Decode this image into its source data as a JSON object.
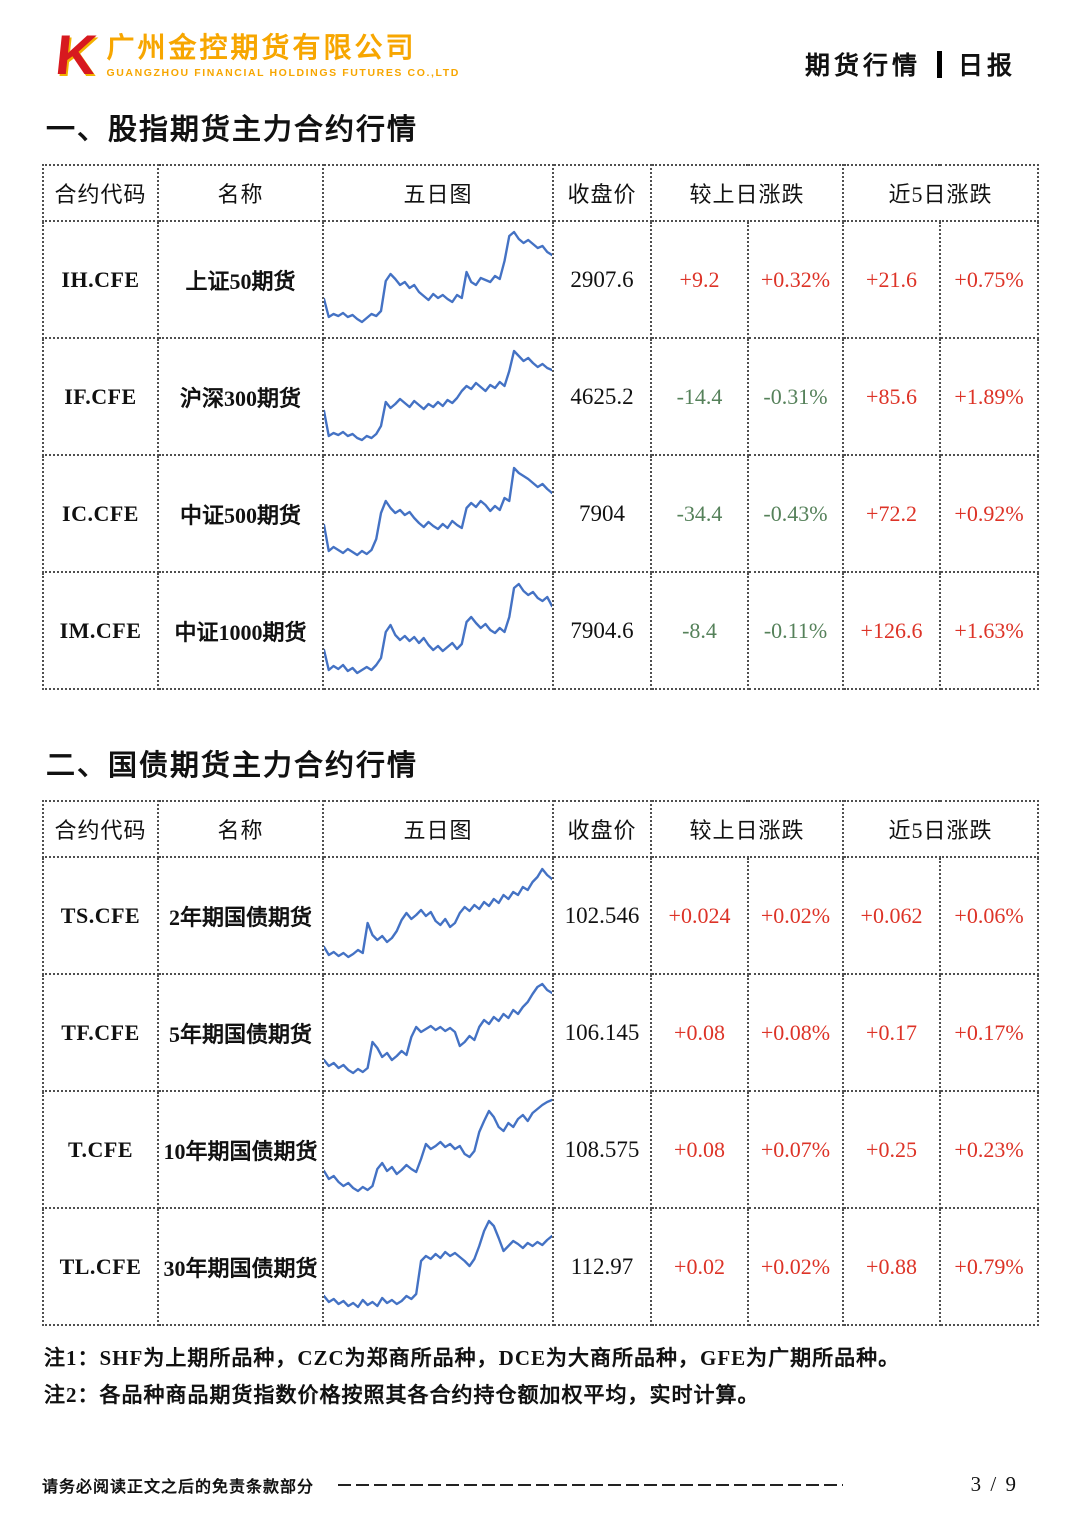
{
  "brand": {
    "logo_letter": "K",
    "company_cn": "广州金控期货有限公司",
    "company_en": "GUANGZHOU FINANCIAL HOLDINGS FUTURES CO.,LTD",
    "logo_red": "#d7191f",
    "logo_orange": "#f7a600"
  },
  "header": {
    "title_left": "期货行情",
    "title_right": "日报"
  },
  "colors": {
    "up": "#dd3327",
    "down": "#55815a",
    "spark_line": "#4472c4"
  },
  "table_columns": {
    "code": "合约代码",
    "name": "名称",
    "chart": "五日图",
    "close": "收盘价",
    "day_change": "较上日涨跌",
    "five_day_change": "近5日涨跌"
  },
  "sections": [
    {
      "heading": "一、股指期货主力合约行情"
    },
    {
      "heading": "二、国债期货主力合约行情"
    }
  ],
  "tables": [
    {
      "rows": [
        {
          "code": "IH.CFE",
          "name": "上证50期货",
          "close": "2907.6",
          "chg": "+9.2",
          "chg_pct": "+0.32%",
          "chg5": "+21.6",
          "chg5_pct": "+0.75%",
          "spark": [
            30,
            12,
            15,
            13,
            16,
            12,
            14,
            10,
            7,
            11,
            15,
            13,
            18,
            48,
            55,
            50,
            44,
            47,
            41,
            44,
            37,
            33,
            29,
            35,
            31,
            34,
            30,
            27,
            34,
            31,
            57,
            47,
            44,
            51,
            49,
            47,
            53,
            50,
            68,
            93,
            97,
            90,
            86,
            89,
            85,
            81,
            83,
            77,
            74
          ]
        },
        {
          "code": "IF.CFE",
          "name": "沪深300期货",
          "close": "4625.2",
          "chg": "-14.4",
          "chg_pct": "-0.31%",
          "chg5": "+85.6",
          "chg5_pct": "+1.89%",
          "spark": [
            35,
            10,
            13,
            11,
            14,
            10,
            12,
            8,
            6,
            10,
            8,
            12,
            20,
            44,
            38,
            42,
            47,
            43,
            39,
            45,
            41,
            37,
            42,
            39,
            44,
            40,
            46,
            43,
            48,
            55,
            60,
            57,
            63,
            59,
            55,
            61,
            58,
            64,
            60,
            75,
            95,
            90,
            85,
            88,
            83,
            79,
            82,
            78,
            76
          ]
        },
        {
          "code": "IC.CFE",
          "name": "中证500期货",
          "close": "7904",
          "chg": "-34.4",
          "chg_pct": "-0.43%",
          "chg5": "+72.2",
          "chg5_pct": "+0.92%",
          "spark": [
            38,
            12,
            16,
            13,
            10,
            14,
            11,
            8,
            12,
            9,
            13,
            24,
            50,
            62,
            55,
            50,
            53,
            48,
            51,
            45,
            40,
            36,
            41,
            37,
            34,
            39,
            35,
            42,
            38,
            35,
            55,
            60,
            56,
            62,
            58,
            52,
            57,
            53,
            65,
            62,
            95,
            90,
            87,
            84,
            80,
            76,
            79,
            74,
            70
          ]
        },
        {
          "code": "IM.CFE",
          "name": "中证1000期货",
          "close": "7904.6",
          "chg": "-8.4",
          "chg_pct": "-0.11%",
          "chg5": "+126.6",
          "chg5_pct": "+1.63%",
          "spark": [
            30,
            10,
            14,
            11,
            15,
            9,
            12,
            7,
            10,
            13,
            10,
            15,
            22,
            48,
            55,
            45,
            40,
            44,
            39,
            43,
            37,
            42,
            35,
            30,
            34,
            29,
            33,
            37,
            31,
            36,
            58,
            63,
            57,
            52,
            56,
            50,
            47,
            52,
            48,
            63,
            92,
            96,
            89,
            85,
            88,
            82,
            79,
            83,
            74
          ]
        }
      ]
    },
    {
      "rows": [
        {
          "code": "TS.CFE",
          "name": "2年期国债期货",
          "close": "102.546",
          "chg": "+0.024",
          "chg_pct": "+0.02%",
          "chg5": "+0.062",
          "chg5_pct": "+0.06%",
          "spark": [
            18,
            10,
            13,
            9,
            12,
            8,
            11,
            15,
            12,
            42,
            30,
            25,
            29,
            23,
            27,
            34,
            45,
            52,
            46,
            50,
            55,
            49,
            53,
            44,
            40,
            46,
            38,
            42,
            52,
            58,
            54,
            60,
            56,
            63,
            59,
            66,
            62,
            70,
            66,
            73,
            70,
            78,
            75,
            83,
            88,
            96,
            90,
            86
          ]
        },
        {
          "code": "TF.CFE",
          "name": "5年期国债期货",
          "close": "106.145",
          "chg": "+0.08",
          "chg_pct": "+0.08%",
          "chg5": "+0.17",
          "chg5_pct": "+0.17%",
          "spark": [
            22,
            16,
            19,
            14,
            17,
            12,
            9,
            13,
            10,
            14,
            40,
            34,
            25,
            29,
            22,
            26,
            31,
            27,
            45,
            55,
            50,
            53,
            56,
            52,
            55,
            51,
            54,
            50,
            36,
            40,
            46,
            42,
            55,
            62,
            58,
            65,
            61,
            68,
            64,
            72,
            68,
            75,
            80,
            88,
            95,
            98,
            92,
            89
          ]
        },
        {
          "code": "T.CFE",
          "name": "10年期国债期货",
          "close": "108.575",
          "chg": "+0.08",
          "chg_pct": "+0.07%",
          "chg5": "+0.25",
          "chg5_pct": "+0.23%",
          "spark": [
            28,
            20,
            23,
            17,
            13,
            16,
            11,
            8,
            12,
            9,
            13,
            30,
            36,
            28,
            32,
            25,
            29,
            34,
            30,
            27,
            40,
            55,
            50,
            53,
            57,
            52,
            55,
            50,
            53,
            45,
            42,
            48,
            67,
            78,
            88,
            82,
            72,
            68,
            76,
            72,
            80,
            84,
            78,
            86,
            90,
            94,
            97,
            99
          ]
        },
        {
          "code": "TL.CFE",
          "name": "30年期国债期货",
          "close": "112.97",
          "chg": "+0.02",
          "chg_pct": "+0.02%",
          "chg5": "+0.88",
          "chg5_pct": "+0.79%",
          "spark": [
            20,
            14,
            17,
            12,
            15,
            10,
            13,
            9,
            16,
            11,
            14,
            10,
            18,
            13,
            16,
            12,
            15,
            20,
            17,
            22,
            55,
            60,
            57,
            62,
            58,
            64,
            60,
            63,
            59,
            55,
            50,
            57,
            70,
            85,
            95,
            90,
            78,
            65,
            70,
            75,
            72,
            68,
            73,
            70,
            74,
            71,
            76,
            80
          ]
        }
      ]
    }
  ],
  "notes": [
    "注1：SHF为上期所品种，CZC为郑商所品种，DCE为大商所品种，GFE为广期所品种。",
    "注2：各品种商品期货指数价格按照其各合约持仓额加权平均，实时计算。"
  ],
  "footer": {
    "disclaimer": "请务必阅读正文之后的免责条款部分",
    "page": "3 / 9"
  }
}
